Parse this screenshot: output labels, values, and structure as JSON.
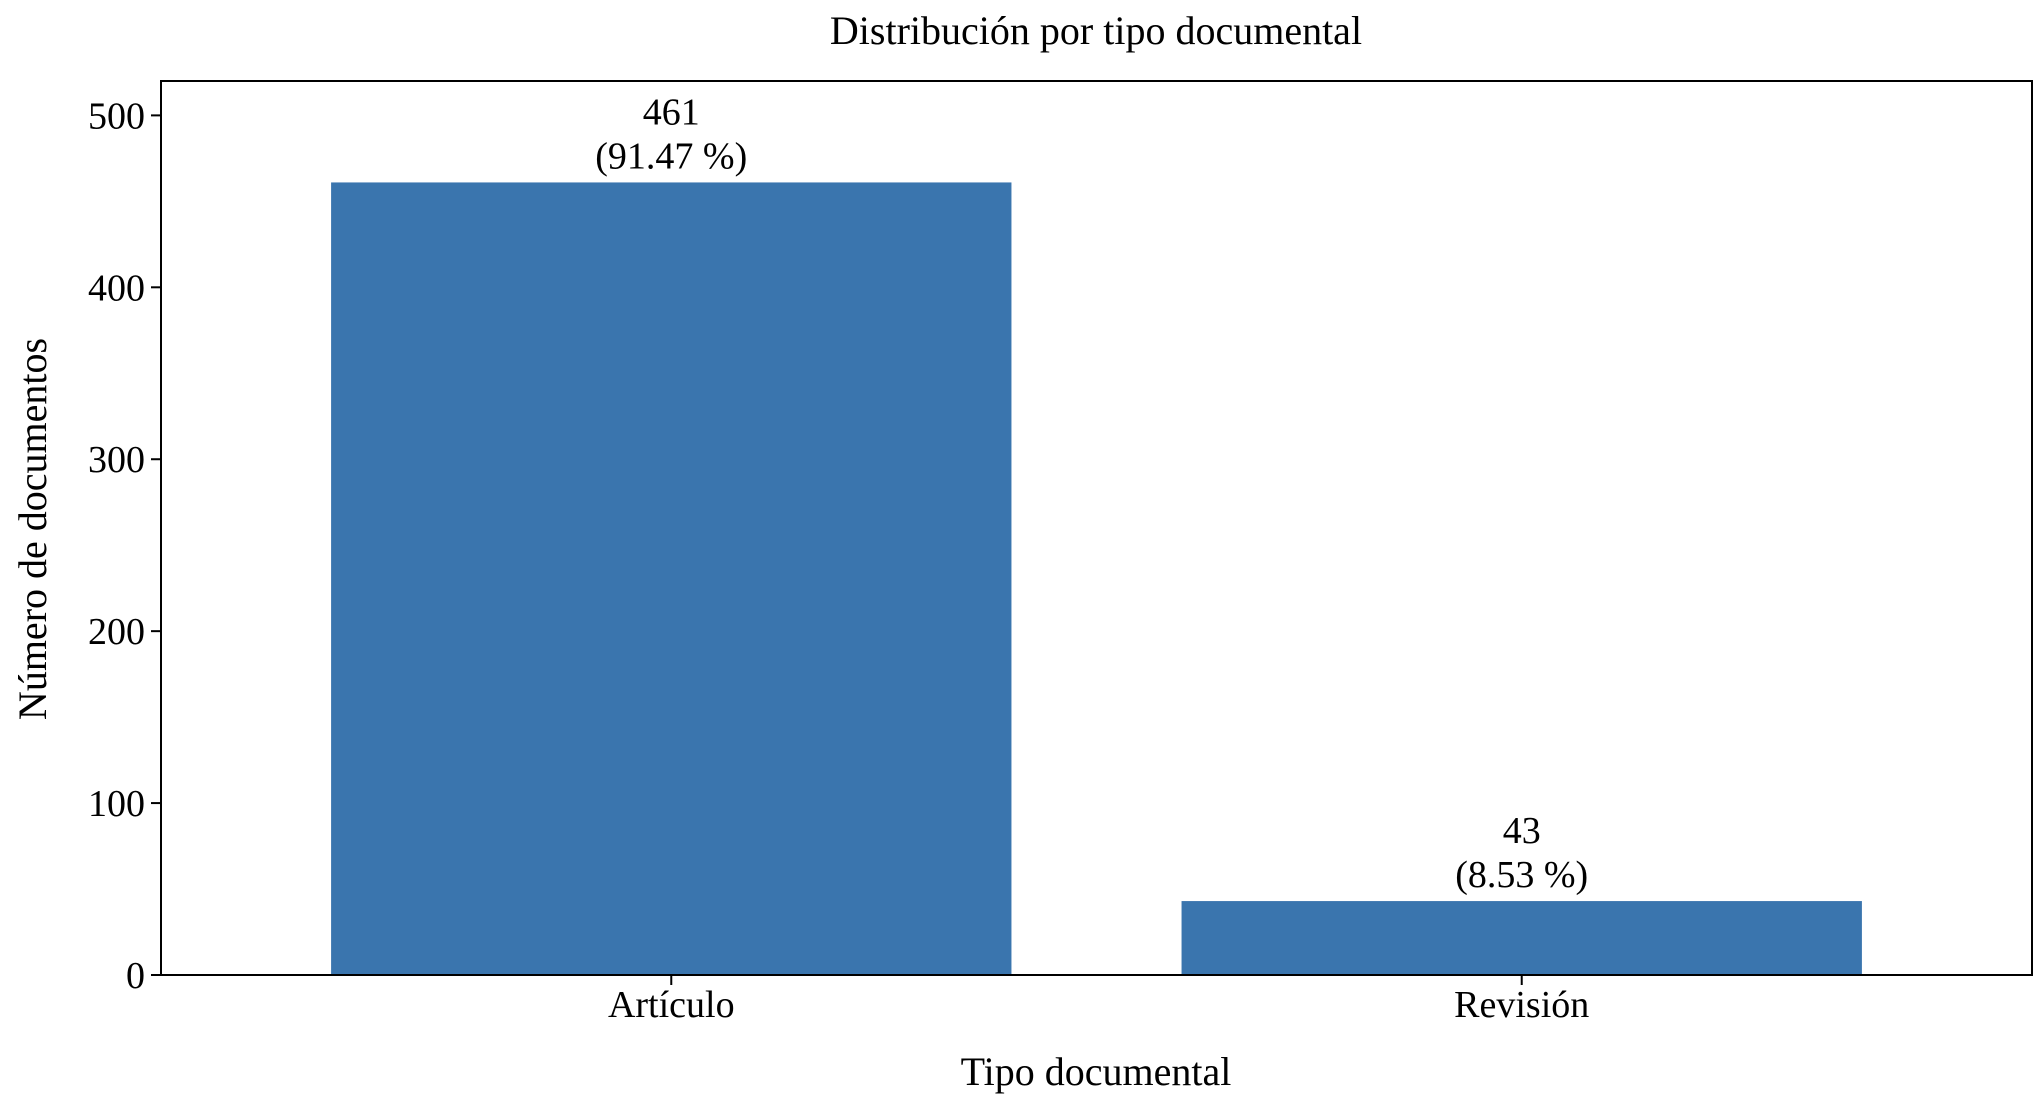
{
  "chart_data": {
    "type": "bar",
    "title": "Distribución por tipo documental",
    "xlabel": "Tipo documental",
    "ylabel": "Número de documentos",
    "categories": [
      "Artículo",
      "Revisión"
    ],
    "values": [
      461,
      43
    ],
    "value_labels": [
      "461",
      "43"
    ],
    "percent_labels": [
      "(91.47 %)",
      "(8.53 %)"
    ],
    "ylim": [
      0,
      520
    ],
    "yticks": [
      0,
      100,
      200,
      300,
      400,
      500
    ],
    "ytick_labels": [
      "0",
      "100",
      "200",
      "300",
      "400",
      "500"
    ],
    "bar_color": "#3a75ae",
    "grid": false,
    "legend": "none"
  }
}
